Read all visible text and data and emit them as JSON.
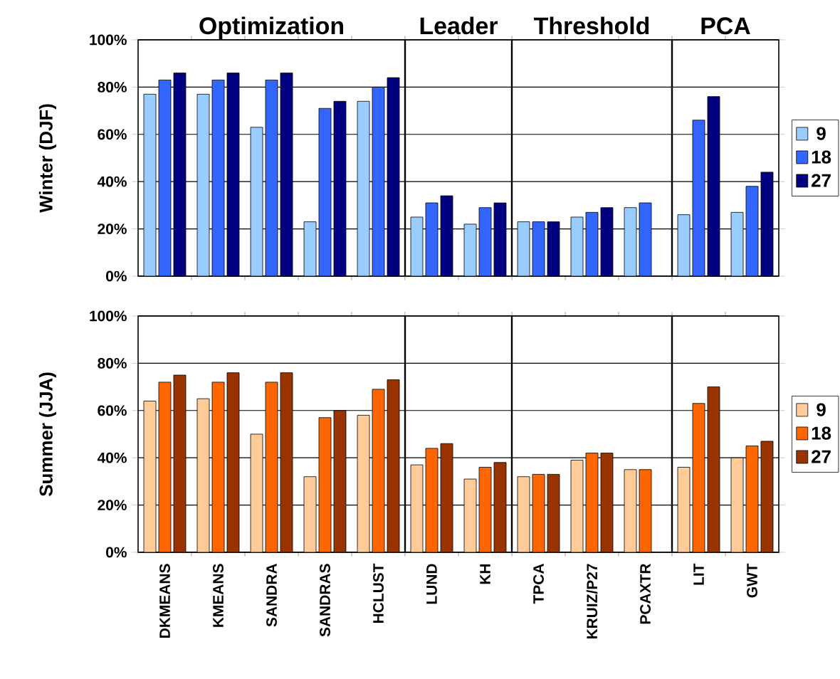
{
  "chart_data": [
    {
      "type": "bar",
      "ylabel": "Winter (DJF)",
      "categories": [
        null,
        null,
        null,
        null,
        null,
        null,
        null,
        null,
        null,
        null,
        null,
        null
      ],
      "series": [
        {
          "name": "9",
          "color": "#99ccff",
          "values": [
            77,
            77,
            63,
            23,
            74,
            25,
            22,
            23,
            25,
            29,
            26,
            27
          ]
        },
        {
          "name": "18",
          "color": "#3366ff",
          "values": [
            83,
            83,
            83,
            71,
            80,
            31,
            29,
            23,
            27,
            31,
            66,
            38
          ]
        },
        {
          "name": "27",
          "color": "#000080",
          "values": [
            86,
            86,
            86,
            74,
            84,
            34,
            31,
            23,
            29,
            null,
            76,
            44
          ]
        }
      ],
      "ylim": [
        0,
        100
      ],
      "yticks": [
        {
          "value": 0,
          "label": "0%"
        },
        {
          "value": 20,
          "label": "20%"
        },
        {
          "value": 40,
          "label": "40%"
        },
        {
          "value": 60,
          "label": "60%"
        },
        {
          "value": 80,
          "label": "80%"
        },
        {
          "value": 100,
          "label": "100%"
        }
      ],
      "grid": "y",
      "legend": "right",
      "tick_labels": "y",
      "annotations": [
        "Optimization",
        "Leader",
        "Threshold",
        "PCA"
      ]
    },
    {
      "type": "bar",
      "ylabel": "Summer (JJA)",
      "categories": [
        "DKMEANS",
        "KMEANS",
        "SANDRA",
        "SANDRAS",
        "HCLUST",
        "LUND",
        "KH",
        "TPCA",
        "KRUIZ/P27",
        "PCAXTR",
        "LIT",
        "GWT"
      ],
      "series": [
        {
          "name": "9",
          "color": "#ffcc99",
          "values": [
            64,
            65,
            50,
            32,
            58,
            37,
            31,
            32,
            39,
            35,
            36,
            40
          ]
        },
        {
          "name": "18",
          "color": "#ff6600",
          "values": [
            72,
            72,
            72,
            57,
            69,
            44,
            36,
            33,
            42,
            35,
            63,
            45
          ]
        },
        {
          "name": "27",
          "color": "#993300",
          "values": [
            75,
            76,
            76,
            60,
            73,
            46,
            38,
            33,
            42,
            null,
            70,
            47
          ]
        }
      ],
      "ylim": [
        0,
        100
      ],
      "yticks": [
        {
          "value": 0,
          "label": "0%"
        },
        {
          "value": 20,
          "label": "20%"
        },
        {
          "value": 40,
          "label": "40%"
        },
        {
          "value": 60,
          "label": "60%"
        },
        {
          "value": 80,
          "label": "80%"
        },
        {
          "value": 100,
          "label": "100%"
        }
      ],
      "grid": "y",
      "legend": "right"
    }
  ]
}
